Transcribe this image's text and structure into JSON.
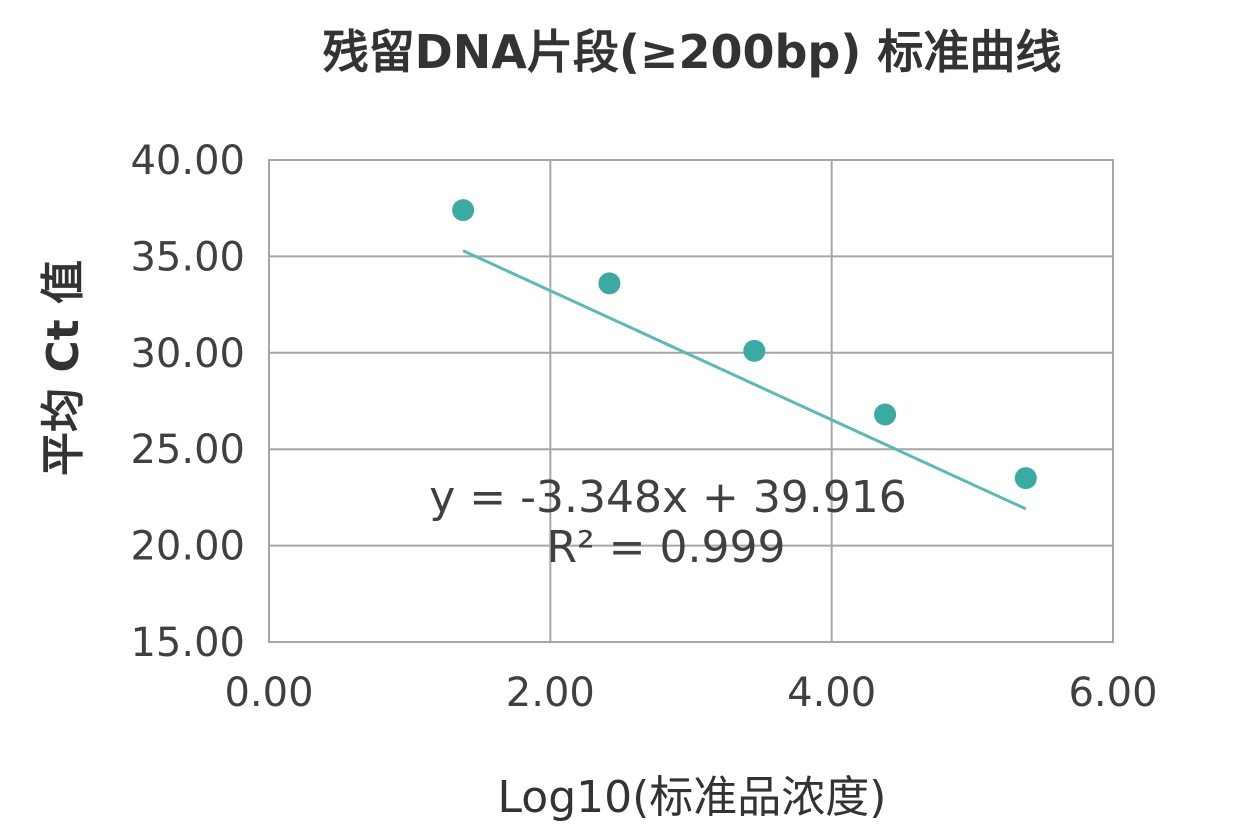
{
  "chart_data": {
    "type": "scatter",
    "title": "残留DNA片段(≥200bp) 标准曲线",
    "xlabel": "Log10(标准品浓度)",
    "ylabel": "平均 Ct 值",
    "xlim": [
      0,
      6
    ],
    "ylim": [
      15,
      40
    ],
    "x_ticks": [
      "0.00",
      "2.00",
      "4.00",
      "6.00"
    ],
    "y_ticks": [
      "15.00",
      "20.00",
      "25.00",
      "30.00",
      "35.00",
      "40.00"
    ],
    "grid": true,
    "legend": "none",
    "series": [
      {
        "x": [
          1.38,
          2.42,
          3.45,
          4.38,
          5.38
        ],
        "y": [
          37.4,
          33.6,
          30.1,
          26.8,
          23.5
        ],
        "color": "#3aaaa3"
      }
    ],
    "trendline": {
      "slope": -3.348,
      "intercept": 39.916,
      "x_range": [
        1.38,
        5.38
      ],
      "color": "#5bbab4"
    },
    "equation": "y = -3.348x + 39.916",
    "r_squared": "R² = 0.999"
  }
}
